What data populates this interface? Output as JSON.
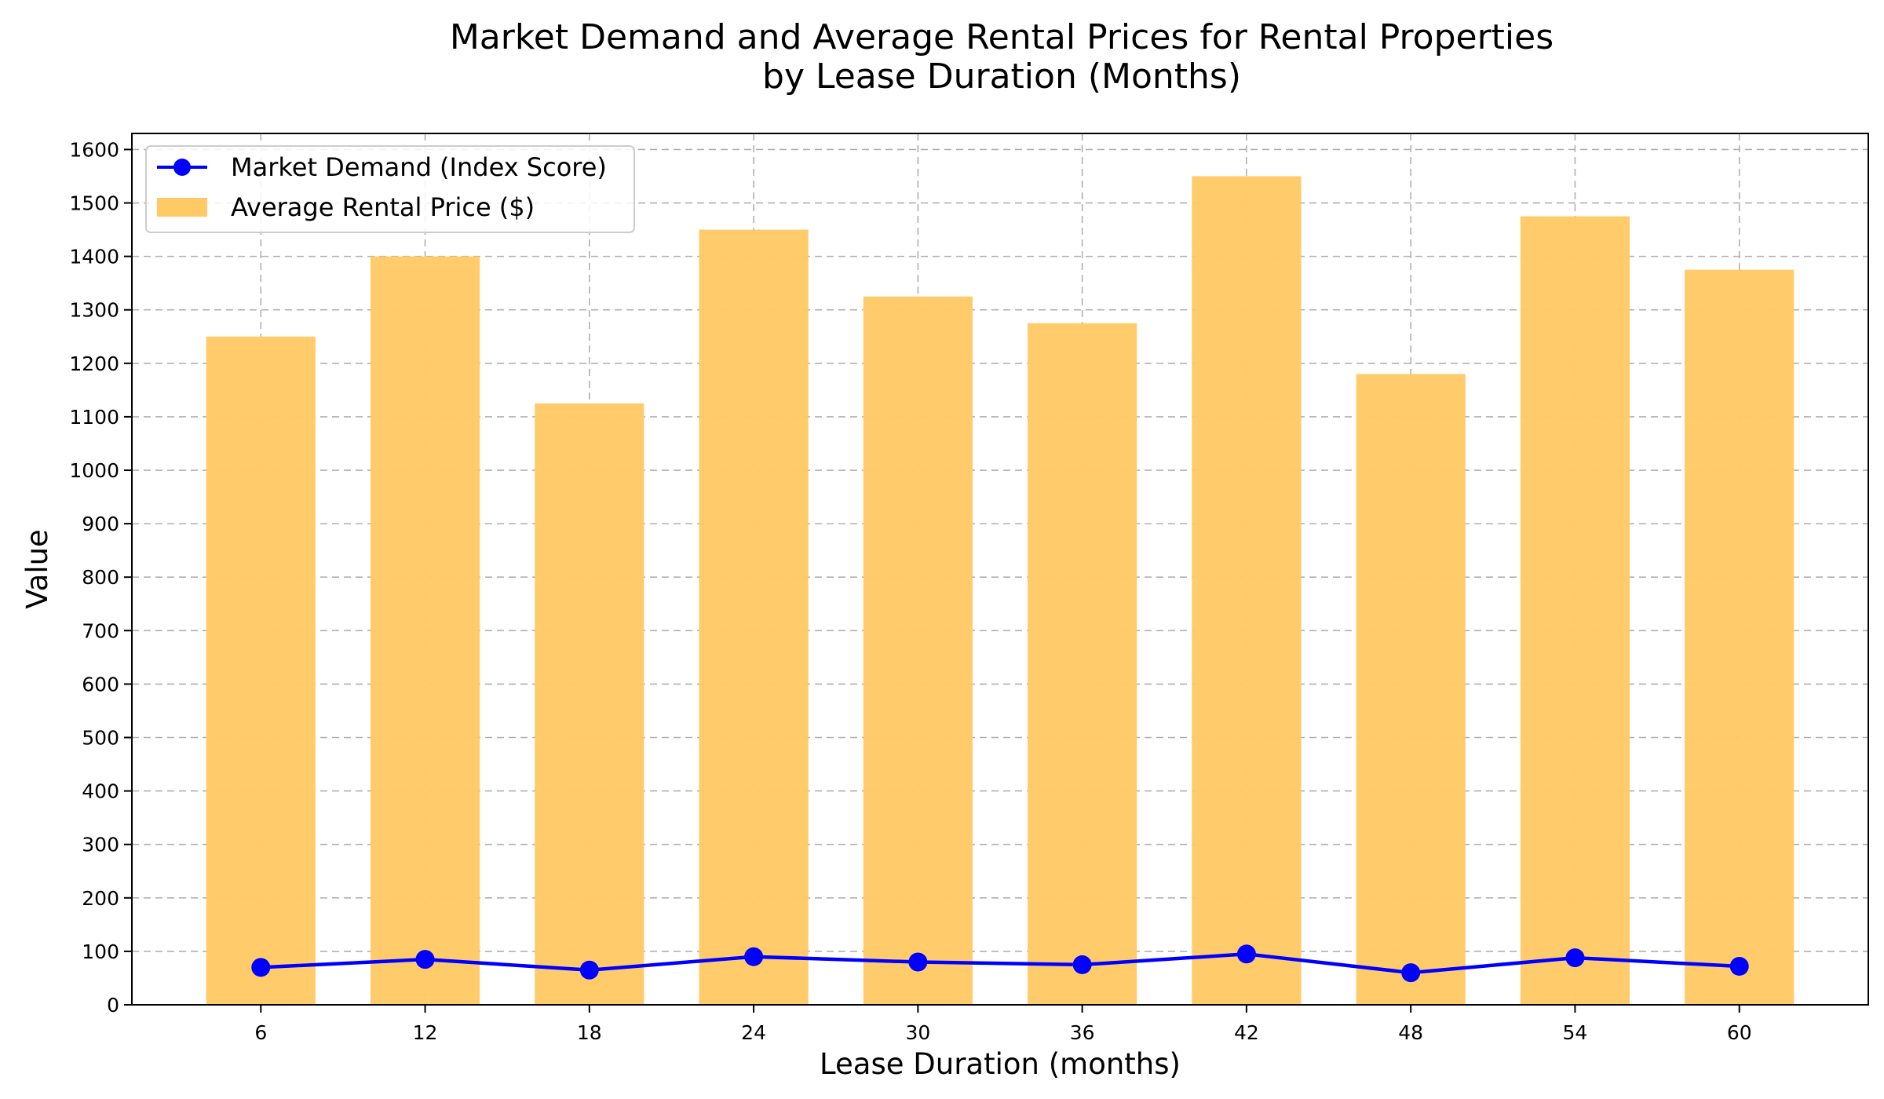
{
  "chart_data": {
    "type": "bar+line",
    "title_lines": [
      "Market Demand and Average Rental Prices for Rental Properties",
      "by Lease Duration (Months)"
    ],
    "xlabel": "Lease Duration (months)",
    "ylabel": "Value",
    "categories": [
      "6",
      "12",
      "18",
      "24",
      "30",
      "36",
      "42",
      "48",
      "54",
      "60"
    ],
    "ylim": [
      0,
      1630
    ],
    "yticks": [
      0,
      100,
      200,
      300,
      400,
      500,
      600,
      700,
      800,
      900,
      1000,
      1100,
      1200,
      1300,
      1400,
      1500,
      1600
    ],
    "grid": true,
    "legend_position": "top-left",
    "series": [
      {
        "name": "Market Demand (Index Score)",
        "kind": "line",
        "color": "#0000ff",
        "values": [
          70,
          85,
          65,
          90,
          80,
          75,
          95,
          60,
          88,
          72
        ]
      },
      {
        "name": "Average Rental Price ($)",
        "kind": "bar",
        "color": "#ffc966",
        "values": [
          1250,
          1400,
          1125,
          1450,
          1325,
          1275,
          1550,
          1180,
          1475,
          1375
        ]
      }
    ]
  }
}
